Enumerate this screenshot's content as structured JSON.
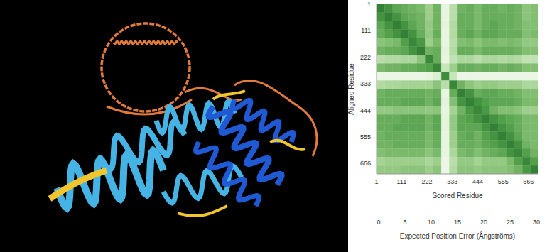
{
  "chart_data": {
    "type": "heatmap",
    "x_label": "Scored Residue",
    "y_label": "Aligned Residue",
    "xlim": [
      1,
      710
    ],
    "ylim": [
      1,
      710
    ],
    "xticks": [
      1,
      111,
      222,
      333,
      444,
      555,
      666
    ],
    "yticks": [
      1,
      111,
      222,
      333,
      444,
      555,
      666
    ],
    "x_edges": [
      1,
      36,
      72,
      107,
      143,
      178,
      214,
      249,
      285,
      320,
      356,
      391,
      427,
      462,
      498,
      533,
      569,
      604,
      640,
      675,
      710
    ],
    "y_edges": [
      1,
      36,
      72,
      107,
      143,
      178,
      214,
      249,
      285,
      320,
      356,
      391,
      427,
      462,
      498,
      533,
      569,
      604,
      640,
      675,
      710
    ],
    "cells": [
      [
        1,
        4,
        7,
        8,
        9,
        10,
        14,
        9,
        27,
        18,
        9,
        8,
        10,
        8,
        8,
        9,
        8,
        9,
        12,
        11
      ],
      [
        4,
        1,
        4,
        7,
        8,
        9,
        14,
        9,
        27,
        18,
        8,
        8,
        10,
        8,
        8,
        8,
        8,
        9,
        12,
        11
      ],
      [
        7,
        4,
        1,
        4,
        7,
        9,
        13,
        9,
        26,
        17,
        8,
        8,
        10,
        8,
        7,
        8,
        8,
        9,
        11,
        11
      ],
      [
        8,
        6,
        4,
        1,
        4,
        8,
        13,
        8,
        27,
        17,
        8,
        7,
        9,
        7,
        7,
        8,
        8,
        8,
        11,
        10
      ],
      [
        12,
        11,
        10,
        6,
        2,
        5,
        14,
        10,
        27,
        18,
        11,
        10,
        12,
        10,
        10,
        11,
        10,
        11,
        13,
        13
      ],
      [
        9,
        8,
        8,
        7,
        4,
        1,
        9,
        8,
        26,
        17,
        8,
        8,
        10,
        8,
        8,
        8,
        8,
        9,
        11,
        11
      ],
      [
        18,
        17,
        17,
        16,
        16,
        12,
        2,
        8,
        27,
        19,
        16,
        16,
        18,
        16,
        16,
        17,
        16,
        17,
        19,
        19
      ],
      [
        10,
        9,
        9,
        8,
        8,
        7,
        6,
        2,
        20,
        14,
        8,
        8,
        9,
        8,
        8,
        9,
        8,
        9,
        11,
        11
      ],
      [
        28,
        28,
        28,
        28,
        28,
        28,
        27,
        24,
        3,
        20,
        28,
        28,
        28,
        28,
        28,
        28,
        28,
        28,
        28,
        28
      ],
      [
        17,
        16,
        16,
        15,
        15,
        15,
        15,
        12,
        18,
        2,
        9,
        12,
        14,
        13,
        13,
        14,
        14,
        14,
        16,
        16
      ],
      [
        9,
        8,
        8,
        8,
        8,
        8,
        9,
        8,
        27,
        8,
        1,
        4,
        8,
        7,
        7,
        8,
        8,
        9,
        11,
        11
      ],
      [
        8,
        8,
        8,
        7,
        7,
        7,
        9,
        7,
        26,
        11,
        4,
        1,
        4,
        6,
        7,
        7,
        7,
        8,
        10,
        10
      ],
      [
        13,
        13,
        12,
        12,
        12,
        12,
        13,
        12,
        27,
        15,
        9,
        5,
        2,
        5,
        9,
        11,
        11,
        12,
        14,
        14
      ],
      [
        8,
        8,
        8,
        7,
        7,
        7,
        9,
        7,
        26,
        13,
        7,
        6,
        4,
        1,
        4,
        6,
        7,
        8,
        10,
        10
      ],
      [
        8,
        8,
        7,
        7,
        7,
        7,
        9,
        7,
        26,
        13,
        7,
        7,
        7,
        4,
        1,
        4,
        6,
        8,
        10,
        10
      ],
      [
        9,
        8,
        8,
        8,
        8,
        8,
        10,
        8,
        27,
        14,
        8,
        7,
        9,
        6,
        4,
        1,
        4,
        7,
        10,
        10
      ],
      [
        9,
        9,
        8,
        8,
        8,
        8,
        10,
        8,
        27,
        14,
        8,
        8,
        9,
        7,
        6,
        4,
        1,
        4,
        9,
        10
      ],
      [
        11,
        10,
        10,
        10,
        10,
        10,
        12,
        10,
        27,
        16,
        10,
        9,
        11,
        9,
        8,
        7,
        4,
        2,
        6,
        9
      ],
      [
        15,
        14,
        14,
        14,
        14,
        14,
        16,
        14,
        28,
        18,
        13,
        13,
        15,
        13,
        13,
        13,
        10,
        6,
        2,
        6
      ],
      [
        13,
        13,
        13,
        12,
        12,
        12,
        14,
        12,
        28,
        17,
        12,
        12,
        13,
        12,
        12,
        12,
        11,
        9,
        5,
        1
      ]
    ],
    "colorbar": {
      "label": "Expected Position Error (Ångströms)",
      "range": [
        0,
        30
      ],
      "ticks": [
        0,
        5,
        10,
        15,
        20,
        25,
        30
      ]
    }
  }
}
